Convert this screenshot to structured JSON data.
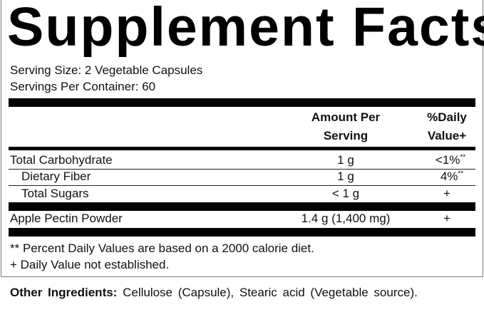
{
  "title": "Supplement Facts",
  "serving_size": "Serving Size: 2 Vegetable Capsules",
  "servings_per_container": "Servings Per Container: 60",
  "header": {
    "amount_line1": "Amount Per",
    "amount_line2": "Serving",
    "dv_line1": "%Daily",
    "dv_line2": "Value+"
  },
  "rows": [
    {
      "name": "Total Carbohydrate",
      "amount": "1 g",
      "dv": "<1%",
      "dv_mark": "**"
    },
    {
      "name": "Dietary Fiber",
      "amount": "1 g",
      "dv": "4%",
      "dv_mark": "**"
    },
    {
      "name": "Total Sugars",
      "amount": "< 1 g",
      "dv": "+",
      "dv_mark": ""
    },
    {
      "name": "Apple Pectin Powder",
      "amount": "1.4 g (1,400 mg)",
      "dv": "+",
      "dv_mark": ""
    }
  ],
  "footnotes": [
    "** Percent Daily Values are based on a 2000 calorie diet.",
    "+ Daily Value not established."
  ],
  "other_ingredients": {
    "label": "Other Ingredients:",
    "text": " Cellulose (Capsule), Stearic acid (Vegetable source)."
  }
}
